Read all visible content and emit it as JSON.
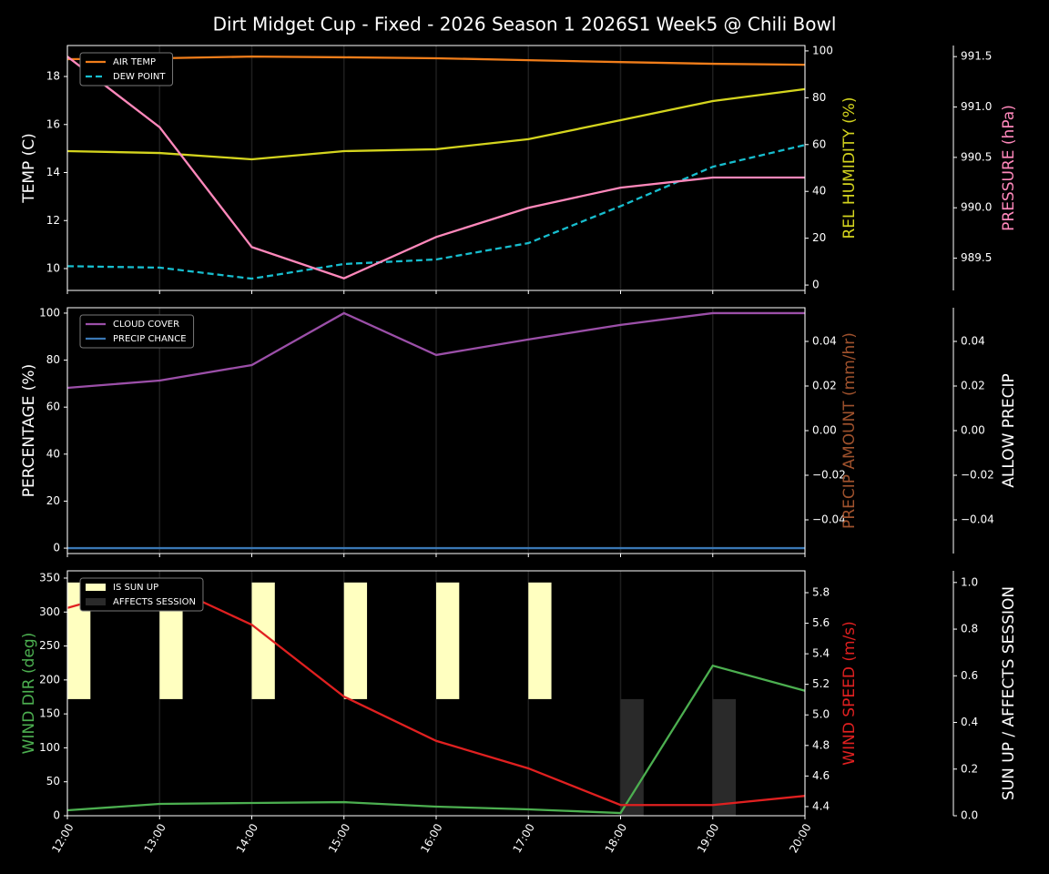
{
  "title": "Dirt Midget Cup - Fixed - 2026 Season 1 2026S1 Week5 @ Chili Bowl",
  "chart_data": [
    {
      "type": "line",
      "grid": true,
      "legend": "upper left",
      "y_axes": [
        {
          "label": "TEMP (C)",
          "label_color": "#ffffff",
          "lim": [
            9.09,
            19.29
          ],
          "ticks": [
            10,
            12,
            14,
            16,
            18
          ]
        },
        {
          "label": "REL HUMIDITY (%)",
          "label_color": "#d4d41e",
          "lim": [
            -2.3,
            102.3
          ],
          "ticks": [
            0,
            20,
            40,
            60,
            80,
            100
          ]
        },
        {
          "label": "PRESSURE (hPa)",
          "label_color": "#ff88bb",
          "lim": [
            989.18,
            991.61
          ],
          "ticks": [
            989.5,
            {
              "value": 990,
              "label": "990.0"
            },
            990.5,
            {
              "value": 991,
              "label": "991.0"
            },
            991.5
          ]
        }
      ],
      "series": [
        {
          "name": "AIR TEMP",
          "color": "#f07d1a",
          "axis": 0,
          "values": [
            18.72,
            18.76,
            18.83,
            18.8,
            18.76,
            18.68,
            18.6,
            18.53,
            18.49
          ]
        },
        {
          "name": "DEW POINT",
          "color": "#17becf",
          "axis": 0,
          "style": "dashed",
          "values": [
            10.1,
            10.04,
            9.58,
            10.19,
            10.38,
            11.06,
            12.6,
            14.24,
            15.15
          ]
        },
        {
          "color": "#d4d41e",
          "axis": 1,
          "values": [
            57.2,
            56.4,
            53.7,
            57.2,
            58,
            62.3,
            70.4,
            78.6,
            83.7
          ]
        },
        {
          "color": "#ff88bb",
          "axis": 2,
          "values": [
            991.5,
            990.8,
            989.61,
            989.3,
            989.71,
            990.0,
            990.2,
            990.3,
            990.3
          ]
        }
      ]
    },
    {
      "type": "line",
      "grid": true,
      "legend": "upper left",
      "y_axes": [
        {
          "label": "PERCENTAGE (%)",
          "label_color": "#ffffff",
          "lim": [
            -2.3,
            102.3
          ],
          "ticks": [
            0,
            20,
            40,
            60,
            80,
            100
          ]
        },
        {
          "label": "PRECIP AMOUNT (mm/hr)",
          "label_color": "#a0522d",
          "lim": [
            -0.0551,
            0.0551
          ],
          "ticks": [
            {
              "value": -0.04,
              "label": "−0.04"
            },
            {
              "value": -0.02,
              "label": "−0.02"
            },
            {
              "value": 0,
              "label": "0.00"
            },
            0.02,
            0.04
          ]
        },
        {
          "label": "ALLOW PRECIP",
          "label_color": "#ffffff",
          "lim": [
            -0.0551,
            0.0551
          ],
          "ticks": [
            {
              "value": -0.04,
              "label": "−0.04"
            },
            {
              "value": -0.02,
              "label": "−0.02"
            },
            {
              "value": 0,
              "label": "0.00"
            },
            0.02,
            0.04
          ]
        }
      ],
      "series": [
        {
          "name": "CLOUD COVER",
          "color": "#9b4fa8",
          "axis": 0,
          "values": [
            68.2,
            71.3,
            77.9,
            100,
            82.2,
            88.8,
            95,
            100,
            100
          ]
        },
        {
          "name": "PRECIP CHANCE",
          "color": "#3a78b5",
          "axis": 0,
          "values": [
            0,
            0,
            0,
            0,
            0,
            0,
            0,
            0,
            0
          ]
        }
      ]
    },
    {
      "type": "line",
      "grid": true,
      "legend": "upper left",
      "categories": [
        "12:00",
        "13:00",
        "14:00",
        "15:00",
        "16:00",
        "17:00",
        "18:00",
        "19:00",
        "20:00"
      ],
      "y_axes": [
        {
          "label": "WIND DIR (deg)",
          "label_color": "#4caf50",
          "lim": [
            0,
            360.7
          ],
          "ticks": [
            0,
            50,
            100,
            150,
            200,
            250,
            300,
            350
          ]
        },
        {
          "label": "WIND SPEED (m/s)",
          "label_color": "#e02020",
          "lim": [
            4.34,
            5.943
          ],
          "ticks": [
            4.4,
            4.6,
            4.8,
            {
              "value": 5,
              "label": "5.0"
            },
            5.2,
            5.4,
            5.6,
            5.8
          ]
        },
        {
          "label": "SUN UP / AFFECTS SESSION",
          "label_color": "#ffffff",
          "lim": [
            0,
            1.05
          ],
          "ticks": [
            {
              "value": 0,
              "label": "0.0"
            },
            0.2,
            0.4,
            0.6,
            0.8,
            {
              "value": 1,
              "label": "1.0"
            }
          ]
        }
      ],
      "series": [
        {
          "name": "IS SUN UP",
          "color": "#ffffc0",
          "axis": 2,
          "kind": "bar",
          "bottom": 0.5,
          "values": [
            0.5,
            0.5,
            0.5,
            0.5,
            0.5,
            0.5,
            0,
            0,
            0
          ]
        },
        {
          "name": "AFFECTS SESSION",
          "color": "#2a2a2a",
          "axis": 2,
          "kind": "bar",
          "bottom": 0,
          "values": [
            0,
            0,
            0,
            0,
            0,
            0,
            0.5,
            0.5,
            0
          ]
        },
        {
          "color": "#4caf50",
          "axis": 0,
          "values": [
            8,
            17.4,
            18.8,
            20,
            13.4,
            9.4,
            4,
            221,
            184
          ]
        },
        {
          "color": "#e02020",
          "axis": 1,
          "values": [
            5.7,
            5.87,
            5.59,
            5.12,
            4.83,
            4.65,
            4.41,
            4.41,
            4.47
          ]
        }
      ]
    }
  ]
}
